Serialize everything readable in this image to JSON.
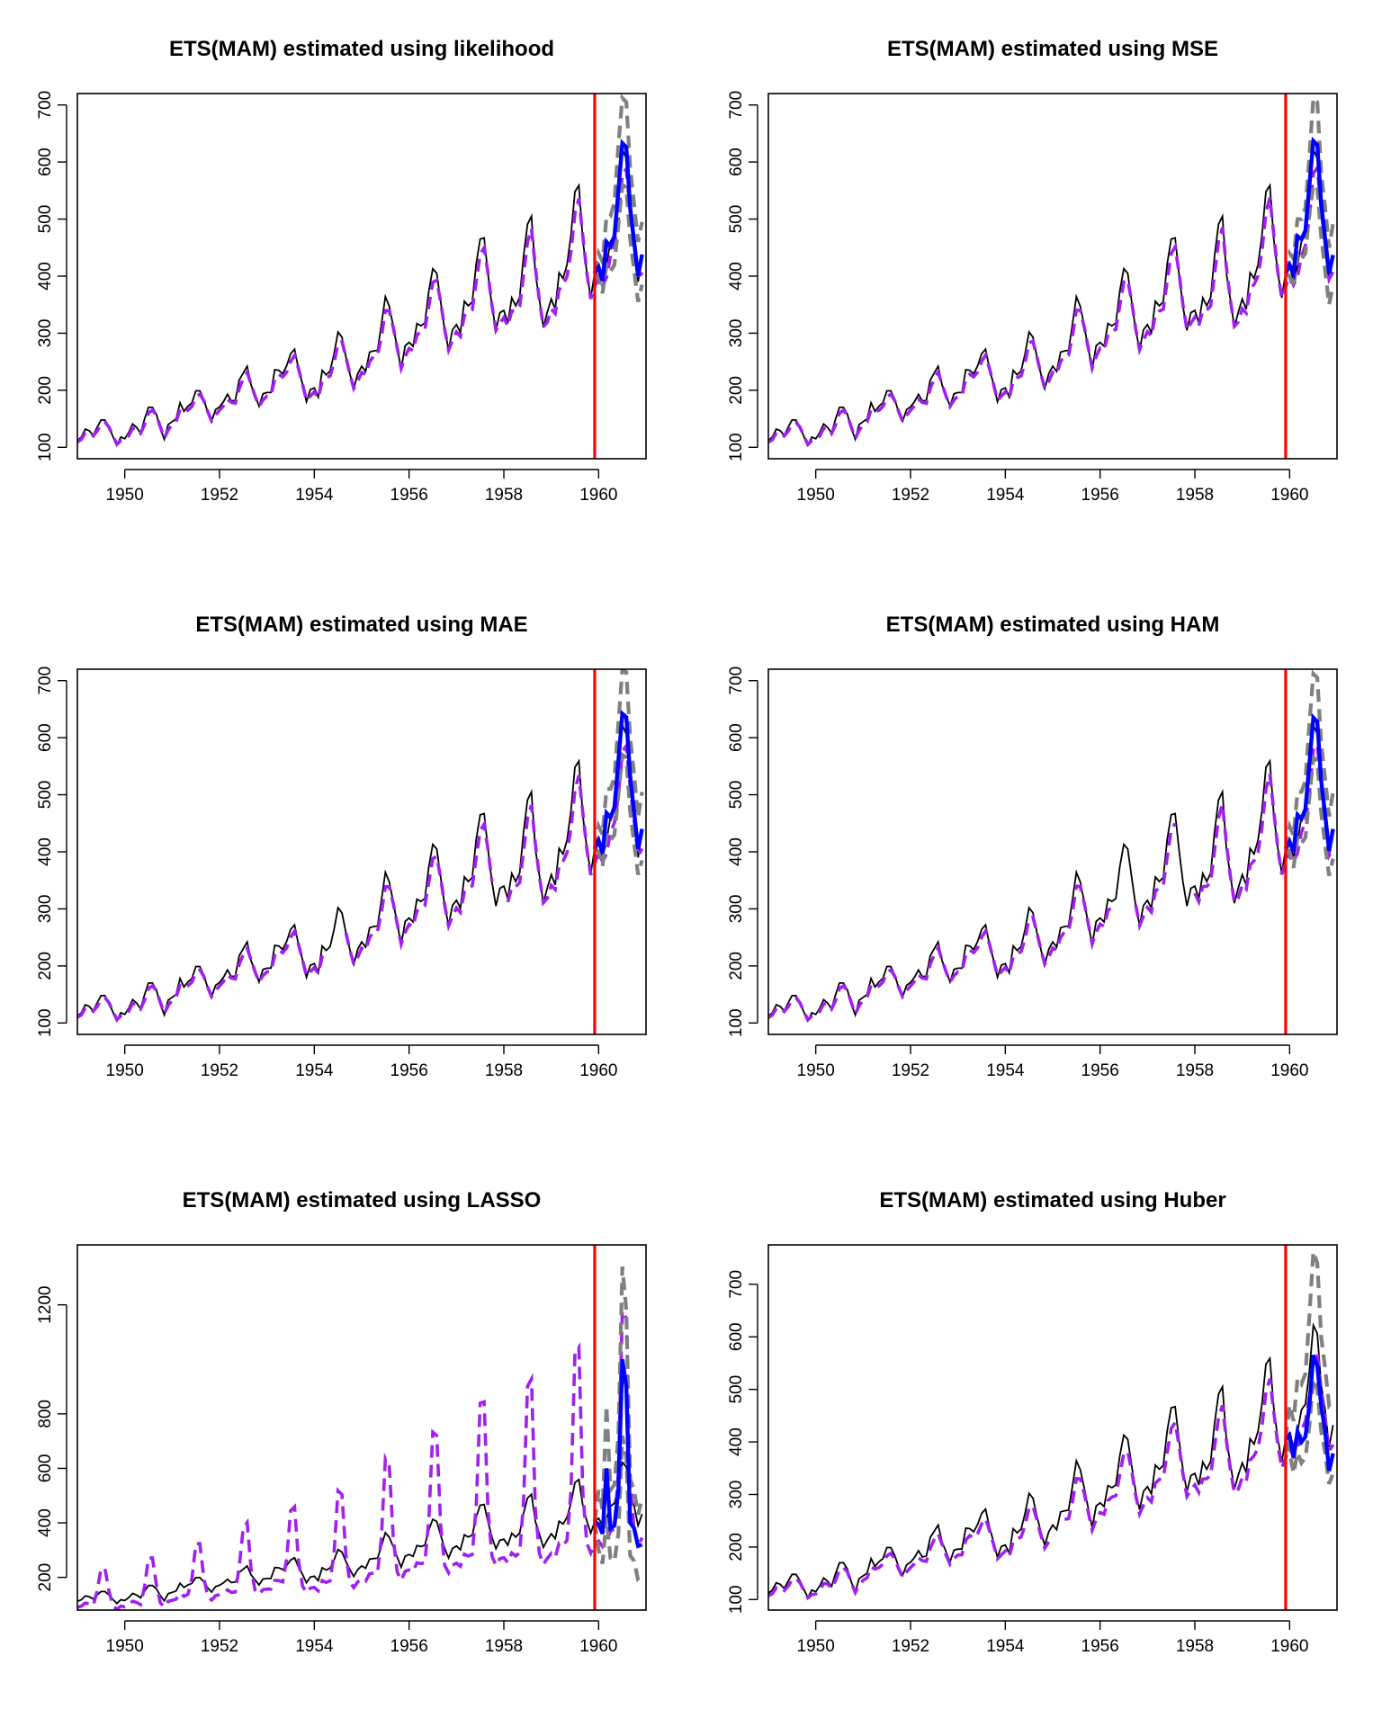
{
  "chart_data": [
    {
      "type": "line",
      "title": "ETS(MAM) estimated using likelihood",
      "xlim": [
        1949,
        1961
      ],
      "ylim": [
        80,
        720
      ],
      "x_ticks": [
        1950,
        1952,
        1954,
        1956,
        1958,
        1960
      ],
      "y_ticks": [
        100,
        200,
        300,
        400,
        500,
        600,
        700
      ],
      "forecast": [
        416,
        392,
        460,
        452,
        470,
        550,
        633,
        626,
        520,
        460,
        400,
        438
      ],
      "upper": [
        440,
        425,
        505,
        505,
        530,
        630,
        712,
        705,
        590,
        525,
        460,
        495
      ],
      "lower": [
        395,
        370,
        420,
        408,
        420,
        490,
        560,
        555,
        465,
        410,
        355,
        385
      ],
      "fitted_scale": 0.96,
      "fitted_offset": 2,
      "fitted_gaps": []
    },
    {
      "type": "line",
      "title": "ETS(MAM) estimated using MSE",
      "xlim": [
        1949,
        1961
      ],
      "ylim": [
        80,
        720
      ],
      "x_ticks": [
        1950,
        1952,
        1954,
        1956,
        1958,
        1960
      ],
      "y_ticks": [
        100,
        200,
        300,
        400,
        500,
        600,
        700
      ],
      "forecast": [
        420,
        405,
        470,
        465,
        480,
        560,
        637,
        630,
        528,
        466,
        405,
        437
      ],
      "upper": [
        440,
        430,
        500,
        500,
        520,
        610,
        712,
        705,
        580,
        520,
        450,
        492
      ],
      "lower": [
        400,
        380,
        440,
        430,
        440,
        510,
        560,
        555,
        470,
        410,
        350,
        385
      ],
      "fitted_scale": 0.965,
      "fitted_offset": 1,
      "fitted_gaps": []
    },
    {
      "type": "line",
      "title": "ETS(MAM) estimated using MAE",
      "xlim": [
        1949,
        1961
      ],
      "ylim": [
        80,
        720
      ],
      "x_ticks": [
        1950,
        1952,
        1954,
        1956,
        1958,
        1960
      ],
      "y_ticks": [
        100,
        200,
        300,
        400,
        500,
        600,
        700
      ],
      "forecast": [
        420,
        398,
        468,
        460,
        478,
        560,
        642,
        636,
        532,
        470,
        405,
        440
      ],
      "upper": [
        445,
        430,
        510,
        510,
        530,
        625,
        720,
        715,
        600,
        535,
        460,
        505
      ],
      "lower": [
        400,
        375,
        430,
        420,
        430,
        500,
        570,
        565,
        470,
        415,
        360,
        385
      ],
      "fitted_scale": 0.955,
      "fitted_offset": 3,
      "fitted_gaps": [
        [
          64,
          67
        ],
        [
          106,
          108
        ]
      ]
    },
    {
      "type": "line",
      "title": "ETS(MAM) estimated using HAM",
      "xlim": [
        1949,
        1961
      ],
      "ylim": [
        80,
        720
      ],
      "x_ticks": [
        1950,
        1952,
        1954,
        1956,
        1958,
        1960
      ],
      "y_ticks": [
        100,
        200,
        300,
        400,
        500,
        600,
        700
      ],
      "forecast": [
        418,
        400,
        465,
        458,
        475,
        555,
        635,
        628,
        525,
        465,
        402,
        440
      ],
      "upper": [
        445,
        428,
        505,
        505,
        525,
        625,
        712,
        705,
        590,
        528,
        462,
        505
      ],
      "lower": [
        398,
        372,
        425,
        415,
        425,
        495,
        565,
        560,
        468,
        412,
        358,
        388
      ],
      "fitted_scale": 0.96,
      "fitted_offset": 2,
      "fitted_gaps": [
        [
          88,
          92
        ],
        [
          104,
          107
        ]
      ]
    },
    {
      "type": "line",
      "title": "ETS(MAM) estimated using LASSO",
      "xlim": [
        1949,
        1961
      ],
      "ylim": [
        80,
        1420
      ],
      "x_ticks": [
        1950,
        1952,
        1954,
        1956,
        1958,
        1960
      ],
      "y_ticks": [
        200,
        400,
        600,
        800,
        1200
      ],
      "forecast": [
        395,
        360,
        600,
        380,
        390,
        520,
        1000,
        900,
        400,
        380,
        315,
        320
      ],
      "upper": [
        520,
        450,
        830,
        520,
        540,
        720,
        1340,
        1180,
        560,
        520,
        430,
        490
      ],
      "lower": [
        300,
        250,
        420,
        270,
        260,
        360,
        720,
        640,
        280,
        260,
        190,
        180
      ],
      "fitted_scale": 0.9,
      "fitted_offset": 5,
      "fitted_gaps": []
    },
    {
      "type": "line",
      "title": "ETS(MAM) estimated using Huber",
      "xlim": [
        1949,
        1961
      ],
      "ylim": [
        80,
        775
      ],
      "x_ticks": [
        1950,
        1952,
        1954,
        1956,
        1958,
        1960
      ],
      "y_ticks": [
        100,
        200,
        300,
        400,
        500,
        600,
        700
      ],
      "forecast": [
        412,
        370,
        420,
        400,
        410,
        470,
        565,
        545,
        470,
        420,
        345,
        378
      ],
      "upper": [
        470,
        440,
        520,
        510,
        530,
        640,
        762,
        740,
        600,
        540,
        470,
        480
      ],
      "lower": [
        380,
        340,
        380,
        360,
        370,
        430,
        520,
        500,
        420,
        380,
        320,
        340
      ],
      "fitted_scale": 0.93,
      "fitted_offset": 3,
      "fitted_gaps": [
        [
          72,
          74
        ]
      ]
    }
  ],
  "actual": [
    112,
    118,
    132,
    129,
    121,
    135,
    148,
    148,
    136,
    119,
    104,
    118,
    115,
    126,
    141,
    135,
    125,
    149,
    170,
    170,
    158,
    133,
    114,
    140,
    145,
    150,
    178,
    163,
    172,
    178,
    199,
    199,
    184,
    162,
    146,
    166,
    171,
    180,
    193,
    181,
    183,
    218,
    230,
    242,
    209,
    191,
    172,
    194,
    196,
    196,
    236,
    235,
    229,
    243,
    264,
    272,
    237,
    211,
    180,
    201,
    204,
    188,
    235,
    227,
    234,
    264,
    302,
    293,
    259,
    229,
    203,
    229,
    242,
    233,
    267,
    269,
    270,
    315,
    364,
    347,
    312,
    274,
    237,
    278,
    284,
    277,
    317,
    313,
    318,
    374,
    413,
    405,
    355,
    306,
    271,
    306,
    315,
    301,
    356,
    348,
    355,
    422,
    465,
    467,
    404,
    347,
    305,
    336,
    340,
    318,
    362,
    348,
    363,
    435,
    491,
    505,
    404,
    359,
    310,
    337,
    360,
    342,
    406,
    396,
    420,
    472,
    548,
    559,
    463,
    407,
    362,
    405,
    417,
    391,
    419,
    461,
    472,
    535,
    622,
    606,
    508,
    461,
    390,
    432
  ]
}
